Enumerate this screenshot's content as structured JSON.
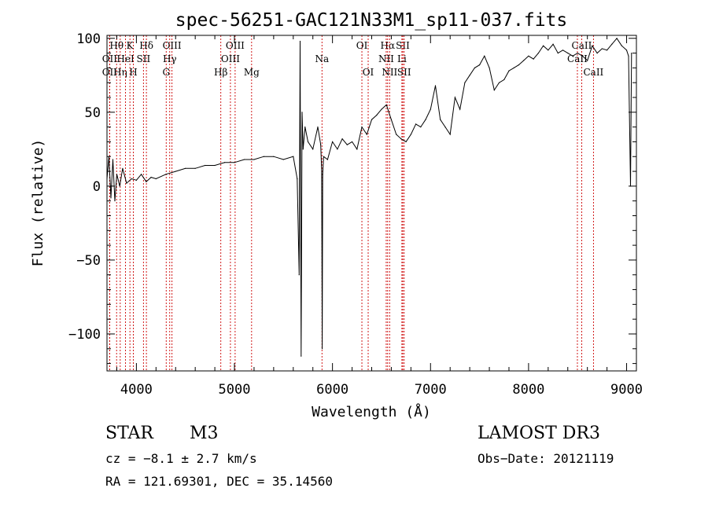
{
  "chart_data": {
    "type": "line",
    "title": "spec-56251-GAC121N33M1_sp11-037.fits",
    "xlabel": "Wavelength (Å)",
    "ylabel": "Flux (relative)",
    "xlim": [
      3700,
      9100
    ],
    "ylim": [
      -125,
      102
    ],
    "xticks": [
      4000,
      5000,
      6000,
      7000,
      8000,
      9000
    ],
    "yticks": [
      -100,
      -50,
      0,
      50,
      100
    ],
    "grid": false,
    "line_color": "#000000",
    "marker_color": "#cc0000",
    "series": [
      {
        "x": [
          3700,
          3720,
          3740,
          3760,
          3780,
          3800,
          3830,
          3860,
          3900,
          3950,
          4000,
          4050,
          4100,
          4150,
          4200,
          4300,
          4400,
          4500,
          4600,
          4700,
          4800,
          4900,
          5000,
          5100,
          5200,
          5300,
          5400,
          5500,
          5600,
          5640,
          5660,
          5670,
          5680,
          5690,
          5700,
          5720,
          5750,
          5800,
          5850,
          5880,
          5890,
          5895,
          5900,
          5910,
          5950,
          6000,
          6050,
          6100,
          6150,
          6200,
          6250,
          6300,
          6350,
          6400,
          6450,
          6500,
          6550,
          6600,
          6650,
          6700,
          6750,
          6800,
          6850,
          6900,
          6950,
          7000,
          7050,
          7100,
          7150,
          7200,
          7250,
          7300,
          7350,
          7400,
          7450,
          7500,
          7550,
          7600,
          7650,
          7700,
          7750,
          7800,
          7850,
          7900,
          7950,
          8000,
          8050,
          8100,
          8150,
          8200,
          8250,
          8300,
          8350,
          8400,
          8450,
          8500,
          8550,
          8600,
          8650,
          8700,
          8750,
          8800,
          8850,
          8900,
          8950,
          9000,
          9020,
          9040,
          9050
        ],
        "y": [
          5,
          20,
          -8,
          18,
          -10,
          8,
          0,
          12,
          2,
          5,
          4,
          8,
          3,
          6,
          5,
          8,
          10,
          12,
          12,
          14,
          14,
          16,
          16,
          18,
          18,
          20,
          20,
          18,
          20,
          5,
          -60,
          98,
          -115,
          50,
          25,
          40,
          30,
          25,
          40,
          28,
          10,
          -110,
          8,
          20,
          18,
          30,
          25,
          32,
          28,
          30,
          25,
          40,
          35,
          45,
          48,
          52,
          55,
          45,
          35,
          32,
          30,
          35,
          42,
          40,
          45,
          52,
          68,
          45,
          40,
          35,
          60,
          52,
          70,
          75,
          80,
          82,
          88,
          80,
          65,
          70,
          72,
          78,
          80,
          82,
          85,
          88,
          86,
          90,
          95,
          92,
          96,
          90,
          92,
          90,
          88,
          90,
          88,
          85,
          95,
          90,
          93,
          92,
          96,
          100,
          95,
          92,
          88,
          0,
          90
        ]
      }
    ],
    "line_markers": [
      {
        "label": "Hθ",
        "x": 3798,
        "row": 0
      },
      {
        "label": "OII",
        "x": 3727,
        "row": 1
      },
      {
        "label": "OII",
        "x": 3727,
        "row": 2
      },
      {
        "label": "Hη",
        "x": 3835,
        "row": 2
      },
      {
        "label": "K",
        "x": 3934,
        "row": 0
      },
      {
        "label": "HeI",
        "x": 3889,
        "row": 1
      },
      {
        "label": "H",
        "x": 3969,
        "row": 2
      },
      {
        "label": "Hδ",
        "x": 4102,
        "row": 0
      },
      {
        "label": "SII",
        "x": 4072,
        "row": 1
      },
      {
        "label": "OIII",
        "x": 4363,
        "row": 0
      },
      {
        "label": "Hγ",
        "x": 4340,
        "row": 1
      },
      {
        "label": "G",
        "x": 4304,
        "row": 2
      },
      {
        "label": "OIII",
        "x": 5007,
        "row": 0
      },
      {
        "label": "OIII",
        "x": 4959,
        "row": 1
      },
      {
        "label": "Hβ",
        "x": 4861,
        "row": 2
      },
      {
        "label": "Mg",
        "x": 5175,
        "row": 2
      },
      {
        "label": "Na",
        "x": 5893,
        "row": 1
      },
      {
        "label": "OI",
        "x": 6300,
        "row": 0
      },
      {
        "label": "OI",
        "x": 6364,
        "row": 2
      },
      {
        "label": "Hα",
        "x": 6563,
        "row": 0
      },
      {
        "label": "NII",
        "x": 6548,
        "row": 1
      },
      {
        "label": "NII",
        "x": 6583,
        "row": 2
      },
      {
        "label": "SII",
        "x": 6717,
        "row": 0
      },
      {
        "label": "Li",
        "x": 6708,
        "row": 1
      },
      {
        "label": "SII",
        "x": 6731,
        "row": 2
      },
      {
        "label": "CaII",
        "x": 8542,
        "row": 0
      },
      {
        "label": "CaII",
        "x": 8498,
        "row": 1
      },
      {
        "label": "CaII",
        "x": 8662,
        "row": 2
      }
    ]
  },
  "info": {
    "object_type": "STAR",
    "subclass": "M3",
    "survey": "LAMOST DR3",
    "cz": "cz = −8.1 ± 2.7 km/s",
    "obs_date": "Obs−Date: 20121119",
    "coords": "RA = 121.69301, DEC =  35.14560"
  }
}
